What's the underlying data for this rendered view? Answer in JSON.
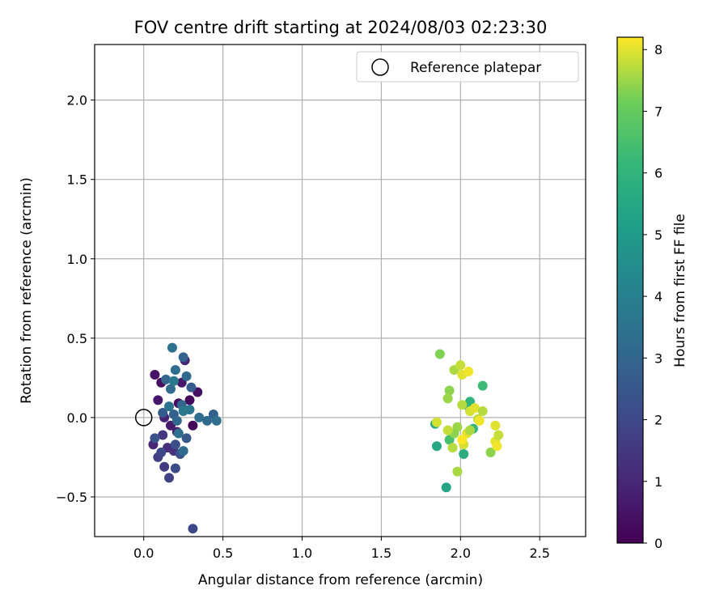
{
  "chart_data": {
    "type": "scatter",
    "title": "FOV centre drift starting at 2024/08/03 02:23:30",
    "xlabel": "Angular distance from reference (arcmin)",
    "ylabel": "Rotation from reference (arcmin)",
    "xlim": [
      -0.31,
      2.79
    ],
    "ylim": [
      -0.75,
      2.35
    ],
    "xticks": [
      0.0,
      0.5,
      1.0,
      1.5,
      2.0,
      2.5
    ],
    "xtick_labels": [
      "0.0",
      "0.5",
      "1.0",
      "1.5",
      "2.0",
      "2.5"
    ],
    "yticks": [
      -0.5,
      0.0,
      0.5,
      1.0,
      1.5,
      2.0
    ],
    "ytick_labels": [
      "−0.5",
      "0.0",
      "0.5",
      "1.0",
      "1.5",
      "2.0"
    ],
    "grid": true,
    "legend": {
      "placement": "upper right",
      "entries": [
        {
          "label": "Reference platepar",
          "marker": "open-circle"
        }
      ]
    },
    "reference_point": {
      "x": 0.0,
      "y": 0.0
    },
    "colorbar": {
      "label": "Hours from first FF file",
      "colormap": "viridis",
      "range": [
        0,
        8.2
      ],
      "ticks": [
        0,
        1,
        2,
        3,
        4,
        5,
        6,
        7,
        8
      ],
      "tick_labels": [
        "0",
        "1",
        "2",
        "3",
        "4",
        "5",
        "6",
        "7",
        "8"
      ]
    },
    "series": [
      {
        "points": [
          {
            "x": 0.07,
            "y": 0.27,
            "c": 0.5
          },
          {
            "x": 0.09,
            "y": 0.11,
            "c": 0.6
          },
          {
            "x": 0.11,
            "y": 0.22,
            "c": 0.4
          },
          {
            "x": 0.13,
            "y": 0.0,
            "c": 0.9
          },
          {
            "x": 0.06,
            "y": -0.17,
            "c": 1.0
          },
          {
            "x": 0.15,
            "y": -0.19,
            "c": 1.2
          },
          {
            "x": 0.17,
            "y": -0.05,
            "c": 0.7
          },
          {
            "x": 0.22,
            "y": 0.09,
            "c": 0.3
          },
          {
            "x": 0.24,
            "y": 0.22,
            "c": 0.6
          },
          {
            "x": 0.26,
            "y": 0.36,
            "c": 0.9
          },
          {
            "x": 0.29,
            "y": 0.11,
            "c": 0.2
          },
          {
            "x": 0.31,
            "y": -0.05,
            "c": 0.1
          },
          {
            "x": 0.34,
            "y": 0.16,
            "c": 0.4
          },
          {
            "x": 0.21,
            "y": -0.09,
            "c": 0.8
          },
          {
            "x": 0.19,
            "y": -0.21,
            "c": 1.3
          },
          {
            "x": 0.12,
            "y": -0.11,
            "c": 1.5
          },
          {
            "x": 0.09,
            "y": -0.25,
            "c": 1.7
          },
          {
            "x": 0.13,
            "y": -0.31,
            "c": 1.6
          },
          {
            "x": 0.16,
            "y": -0.38,
            "c": 1.8
          },
          {
            "x": 0.2,
            "y": -0.32,
            "c": 2.1
          },
          {
            "x": 0.23,
            "y": -0.23,
            "c": 2.3
          },
          {
            "x": 0.27,
            "y": -0.13,
            "c": 2.5
          },
          {
            "x": 0.2,
            "y": -0.17,
            "c": 2.2
          },
          {
            "x": 0.11,
            "y": -0.22,
            "c": 2.0
          },
          {
            "x": 0.07,
            "y": -0.13,
            "c": 2.4
          },
          {
            "x": 0.12,
            "y": 0.03,
            "c": 2.6
          },
          {
            "x": 0.19,
            "y": 0.02,
            "c": 2.8
          },
          {
            "x": 0.24,
            "y": 0.08,
            "c": 3.0
          },
          {
            "x": 0.21,
            "y": -0.02,
            "c": 3.1
          },
          {
            "x": 0.17,
            "y": 0.18,
            "c": 3.2
          },
          {
            "x": 0.2,
            "y": 0.3,
            "c": 3.3
          },
          {
            "x": 0.25,
            "y": 0.38,
            "c": 2.9
          },
          {
            "x": 0.18,
            "y": 0.44,
            "c": 3.4
          },
          {
            "x": 0.14,
            "y": 0.24,
            "c": 3.0
          },
          {
            "x": 0.16,
            "y": 0.07,
            "c": 3.5
          },
          {
            "x": 0.27,
            "y": 0.26,
            "c": 3.1
          },
          {
            "x": 0.3,
            "y": 0.19,
            "c": 2.7
          },
          {
            "x": 0.29,
            "y": 0.05,
            "c": 3.6
          },
          {
            "x": 0.35,
            "y": 0.0,
            "c": 3.3
          },
          {
            "x": 0.4,
            "y": -0.02,
            "c": 3.2
          },
          {
            "x": 0.44,
            "y": 0.02,
            "c": 2.8
          },
          {
            "x": 0.46,
            "y": -0.02,
            "c": 3.3
          },
          {
            "x": 0.25,
            "y": 0.04,
            "c": 3.8
          },
          {
            "x": 0.19,
            "y": 0.23,
            "c": 3.7
          },
          {
            "x": 0.22,
            "y": -0.1,
            "c": 3.4
          },
          {
            "x": 0.25,
            "y": -0.21,
            "c": 3.2
          },
          {
            "x": 0.31,
            "y": -0.7,
            "c": 2.0
          },
          {
            "x": 1.84,
            "y": -0.04,
            "c": 5.6
          },
          {
            "x": 1.85,
            "y": -0.18,
            "c": 5.5
          },
          {
            "x": 1.91,
            "y": -0.44,
            "c": 5.4
          },
          {
            "x": 2.02,
            "y": -0.23,
            "c": 5.7
          },
          {
            "x": 2.05,
            "y": 0.07,
            "c": 5.9
          },
          {
            "x": 2.06,
            "y": 0.1,
            "c": 6.0
          },
          {
            "x": 2.08,
            "y": -0.07,
            "c": 6.1
          },
          {
            "x": 2.14,
            "y": 0.2,
            "c": 6.3
          },
          {
            "x": 1.93,
            "y": -0.14,
            "c": 6.5
          },
          {
            "x": 1.87,
            "y": 0.4,
            "c": 7.3
          },
          {
            "x": 1.93,
            "y": 0.17,
            "c": 7.4
          },
          {
            "x": 1.92,
            "y": 0.12,
            "c": 7.5
          },
          {
            "x": 1.96,
            "y": 0.3,
            "c": 7.6
          },
          {
            "x": 2.0,
            "y": 0.33,
            "c": 7.8
          },
          {
            "x": 2.01,
            "y": 0.27,
            "c": 8.0
          },
          {
            "x": 2.05,
            "y": 0.29,
            "c": 8.1
          },
          {
            "x": 2.01,
            "y": 0.08,
            "c": 7.7
          },
          {
            "x": 2.06,
            "y": 0.04,
            "c": 7.9
          },
          {
            "x": 2.09,
            "y": 0.06,
            "c": 8.0
          },
          {
            "x": 2.11,
            "y": -0.01,
            "c": 7.8
          },
          {
            "x": 2.14,
            "y": 0.04,
            "c": 7.7
          },
          {
            "x": 2.12,
            "y": -0.02,
            "c": 8.1
          },
          {
            "x": 2.04,
            "y": -0.1,
            "c": 8.0
          },
          {
            "x": 2.06,
            "y": -0.08,
            "c": 7.6
          },
          {
            "x": 2.02,
            "y": -0.17,
            "c": 7.9
          },
          {
            "x": 1.98,
            "y": -0.06,
            "c": 7.5
          },
          {
            "x": 1.96,
            "y": -0.1,
            "c": 7.4
          },
          {
            "x": 1.95,
            "y": -0.19,
            "c": 7.7
          },
          {
            "x": 1.92,
            "y": -0.08,
            "c": 7.8
          },
          {
            "x": 1.85,
            "y": -0.03,
            "c": 7.9
          },
          {
            "x": 1.98,
            "y": -0.34,
            "c": 7.6
          },
          {
            "x": 2.19,
            "y": -0.22,
            "c": 7.4
          },
          {
            "x": 2.22,
            "y": -0.15,
            "c": 8.0
          },
          {
            "x": 2.23,
            "y": -0.18,
            "c": 8.1
          },
          {
            "x": 2.24,
            "y": -0.11,
            "c": 7.8
          },
          {
            "x": 2.22,
            "y": -0.05,
            "c": 8.0
          },
          {
            "x": 2.01,
            "y": -0.14,
            "c": 8.2
          }
        ]
      }
    ]
  }
}
